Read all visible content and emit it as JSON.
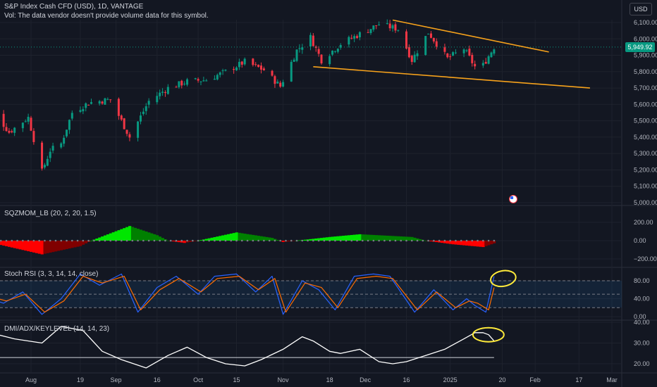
{
  "header": {
    "title": "S&P Index Cash CFD (USD), 1D, VANTAGE",
    "vol_note": "Vol: The data vendor doesn't provide volume data for this symbol.",
    "currency": "USD",
    "last_price": "5,949.92"
  },
  "colors": {
    "background": "#131722",
    "up": "#089981",
    "down": "#f23645",
    "trendline": "#f7a21b",
    "annotation": "#ffeb3b",
    "stoch_k": "#2962ff",
    "stoch_d": "#ff6d00",
    "adx_line": "#ffffff",
    "sqz_up_bright": "#00e600",
    "sqz_up_dark": "#008000",
    "sqz_down_bright": "#ff0000",
    "sqz_down_dark": "#800000"
  },
  "x_axis": {
    "ticks": [
      "Aug",
      "19",
      "Sep",
      "16",
      "Oct",
      "15",
      "Nov",
      "18",
      "Dec",
      "16",
      "2025",
      "20",
      "Feb",
      "17",
      "Mar"
    ]
  },
  "chart_data": [
    {
      "type": "candlestick",
      "y_ticks": [
        "6,100.00",
        "6,000.00",
        "5,900.00",
        "5,800.00",
        "5,700.00",
        "5,600.00",
        "5,500.00",
        "5,400.00",
        "5,300.00",
        "5,200.00",
        "5,100.00",
        "5,000.00"
      ],
      "ylim": [
        4990,
        6140
      ],
      "approx_close_path": [
        [
          "Jul 17",
          5590
        ],
        [
          "Jul 24",
          5430
        ],
        [
          "Jul 31",
          5520
        ],
        [
          "Aug 5",
          5190
        ],
        [
          "Aug 8",
          5320
        ],
        [
          "Aug 12",
          5360
        ],
        [
          "Aug 16",
          5550
        ],
        [
          "Aug 22",
          5610
        ],
        [
          "Aug 30",
          5630
        ],
        [
          "Sep 6",
          5400
        ],
        [
          "Sep 13",
          5620
        ],
        [
          "Sep 20",
          5700
        ],
        [
          "Sep 27",
          5740
        ],
        [
          "Oct 4",
          5750
        ],
        [
          "Oct 11",
          5800
        ],
        [
          "Oct 18",
          5860
        ],
        [
          "Oct 25",
          5810
        ],
        [
          "Oct 31",
          5710
        ],
        [
          "Nov 6",
          5930
        ],
        [
          "Nov 11",
          6010
        ],
        [
          "Nov 15",
          5870
        ],
        [
          "Nov 22",
          5970
        ],
        [
          "Nov 29",
          6030
        ],
        [
          "Dec 6",
          6090
        ],
        [
          "Dec 13",
          6060
        ],
        [
          "Dec 18",
          5870
        ],
        [
          "Dec 24",
          6040
        ],
        [
          "Dec 31",
          5880
        ],
        [
          "Jan 6",
          5940
        ],
        [
          "Jan 10",
          5830
        ],
        [
          "Jan 13",
          5840
        ],
        [
          "Jan 17",
          5950
        ]
      ],
      "trendlines": [
        {
          "name": "upper",
          "from": [
            "Dec 11",
            6115
          ],
          "to": [
            "Feb 6",
            5920
          ]
        },
        {
          "name": "lower",
          "from": [
            "Nov 12",
            5830
          ],
          "to": [
            "Feb 21",
            5700
          ]
        }
      ]
    },
    {
      "type": "area",
      "label": "SQZMOM_LB (20, 2, 20, 1.5)",
      "y_ticks": [
        "200.00",
        "0.00",
        "−200.00"
      ],
      "ylim": [
        -260,
        280
      ],
      "approx_values": [
        [
          "Jul 17",
          -20
        ],
        [
          "Aug 5",
          -150
        ],
        [
          "Aug 19",
          -60
        ],
        [
          "Aug 23",
          0
        ],
        [
          "Sep 6",
          160
        ],
        [
          "Sep 16",
          60
        ],
        [
          "Sep 20",
          0
        ],
        [
          "Sep 26",
          -25
        ],
        [
          "Oct 1",
          0
        ],
        [
          "Oct 15",
          90
        ],
        [
          "Oct 28",
          30
        ],
        [
          "Nov 1",
          -15
        ],
        [
          "Nov 6",
          0
        ],
        [
          "Nov 18",
          40
        ],
        [
          "Nov 29",
          70
        ],
        [
          "Dec 18",
          40
        ],
        [
          "Dec 23",
          0
        ],
        [
          "Jan 2",
          -40
        ],
        [
          "Jan 13",
          -70
        ],
        [
          "Jan 17",
          -30
        ]
      ]
    },
    {
      "type": "line",
      "label": "Stoch RSI (3, 3, 14, 14, close)",
      "y_ticks": [
        "80.00",
        "40.00",
        "0.00"
      ],
      "ylim": [
        -20,
        100
      ],
      "bands": [
        80,
        50,
        20
      ],
      "series": [
        {
          "values": [
            [
              "Jul 17",
              40
            ],
            [
              "Jul 22",
              30
            ],
            [
              "Jul 29",
              55
            ],
            [
              "Aug 5",
              5
            ],
            [
              "Aug 12",
              40
            ],
            [
              "Aug 19",
              95
            ],
            [
              "Aug 26",
              70
            ],
            [
              "Sep 3",
              95
            ],
            [
              "Sep 9",
              10
            ],
            [
              "Sep 16",
              65
            ],
            [
              "Sep 23",
              90
            ],
            [
              "Oct 1",
              50
            ],
            [
              "Oct 7",
              90
            ],
            [
              "Oct 15",
              95
            ],
            [
              "Oct 22",
              55
            ],
            [
              "Oct 28",
              90
            ],
            [
              "Nov 1",
              5
            ],
            [
              "Nov 8",
              80
            ],
            [
              "Nov 14",
              60
            ],
            [
              "Nov 20",
              15
            ],
            [
              "Nov 27",
              90
            ],
            [
              "Dec 4",
              95
            ],
            [
              "Dec 10",
              90
            ],
            [
              "Dec 19",
              10
            ],
            [
              "Dec 26",
              60
            ],
            [
              "Jan 2",
              15
            ],
            [
              "Jan 7",
              40
            ],
            [
              "Jan 10",
              25
            ],
            [
              "Jan 14",
              10
            ],
            [
              "Jan 17",
              90
            ]
          ]
        },
        {
          "values": [
            [
              "Jul 17",
              45
            ],
            [
              "Jul 23",
              35
            ],
            [
              "Jul 30",
              50
            ],
            [
              "Aug 6",
              10
            ],
            [
              "Aug 13",
              35
            ],
            [
              "Aug 20",
              90
            ],
            [
              "Aug 27",
              75
            ],
            [
              "Sep 4",
              90
            ],
            [
              "Sep 10",
              15
            ],
            [
              "Sep 17",
              60
            ],
            [
              "Sep 24",
              85
            ],
            [
              "Oct 2",
              55
            ],
            [
              "Oct 8",
              85
            ],
            [
              "Oct 16",
              90
            ],
            [
              "Oct 23",
              60
            ],
            [
              "Oct 29",
              85
            ],
            [
              "Nov 2",
              10
            ],
            [
              "Nov 9",
              75
            ],
            [
              "Nov 15",
              65
            ],
            [
              "Nov 21",
              20
            ],
            [
              "Nov 28",
              85
            ],
            [
              "Dec 5",
              90
            ],
            [
              "Dec 11",
              85
            ],
            [
              "Dec 20",
              15
            ],
            [
              "Dec 27",
              55
            ],
            [
              "Jan 3",
              20
            ],
            [
              "Jan 8",
              35
            ],
            [
              "Jan 11",
              30
            ],
            [
              "Jan 15",
              15
            ],
            [
              "Jan 17",
              65
            ]
          ]
        }
      ]
    },
    {
      "type": "line",
      "label": "DMI/ADX/KEYLEVEL (14, 14, 23)",
      "y_ticks": [
        "40.00",
        "30.00",
        "20.00"
      ],
      "ylim": [
        17,
        43
      ],
      "key_level": 23,
      "series": [
        {
          "values": [
            [
              "Jul 17",
              35
            ],
            [
              "Jul 26",
              32
            ],
            [
              "Aug 5",
              30
            ],
            [
              "Aug 12",
              38
            ],
            [
              "Aug 20",
              36
            ],
            [
              "Aug 27",
              26
            ],
            [
              "Sep 3",
              22
            ],
            [
              "Sep 12",
              18
            ],
            [
              "Sep 20",
              24
            ],
            [
              "Sep 27",
              28
            ],
            [
              "Oct 4",
              23
            ],
            [
              "Oct 11",
              20
            ],
            [
              "Oct 18",
              19
            ],
            [
              "Oct 24",
              22
            ],
            [
              "Nov 1",
              27
            ],
            [
              "Nov 8",
              33
            ],
            [
              "Nov 12",
              31
            ],
            [
              "Nov 18",
              26
            ],
            [
              "Nov 22",
              25
            ],
            [
              "Nov 29",
              27
            ],
            [
              "Dec 6",
              21
            ],
            [
              "Dec 11",
              20
            ],
            [
              "Dec 16",
              21
            ],
            [
              "Dec 23",
              24
            ],
            [
              "Dec 30",
              27
            ],
            [
              "Jan 6",
              32
            ],
            [
              "Jan 10",
              35
            ],
            [
              "Jan 13",
              35
            ],
            [
              "Jan 15",
              34
            ],
            [
              "Jan 17",
              31
            ]
          ]
        }
      ]
    }
  ]
}
